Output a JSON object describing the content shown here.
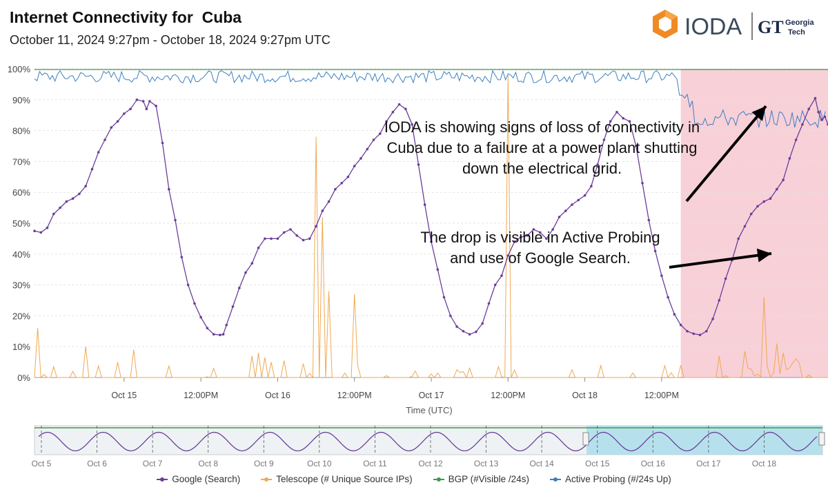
{
  "header": {
    "title": "Internet Connectivity for  Cuba",
    "subtitle": "October 11, 2024 9:27pm - October 18, 2024 9:27pm UTC",
    "logo_text": "IODA",
    "partner_logo_text": "Georgia Tech"
  },
  "annotations": {
    "main": "IODA is showing signs of loss of connectivity in Cuba due to a failure at a power plant shutting down the electrical grid.",
    "drop": "The drop is visible in Active Probing and use of Google Search."
  },
  "colors": {
    "google": "#6a3d9a",
    "telescope": "#f0a850",
    "bgp": "#3c9a4c",
    "active_probing": "#3b7fc0",
    "outage_band": "#f8d0d8",
    "navigator_selection": "#a8dcea"
  },
  "chart_data": {
    "type": "line",
    "title": "Internet Connectivity for  Cuba",
    "xlabel": "Time (UTC)",
    "ylabel": "",
    "ylim": [
      0,
      100
    ],
    "y_ticks": [
      "0%",
      "10%",
      "20%",
      "30%",
      "40%",
      "50%",
      "60%",
      "70%",
      "80%",
      "90%",
      "100%"
    ],
    "x_range_hours": [
      -14,
      110
    ],
    "x_ticks": [
      {
        "label": "Oct 15",
        "hour": 0
      },
      {
        "label": "12:00PM",
        "hour": 12
      },
      {
        "label": "Oct 16",
        "hour": 24
      },
      {
        "label": "12:00PM",
        "hour": 36
      },
      {
        "label": "Oct 17",
        "hour": 48
      },
      {
        "label": "12:00PM",
        "hour": 60
      },
      {
        "label": "Oct 18",
        "hour": 72
      },
      {
        "label": "12:00PM",
        "hour": 84
      }
    ],
    "grid": true,
    "legend_position": "bottom",
    "outage_band_hours": [
      87,
      110
    ],
    "series": [
      {
        "name": "Google (Search)",
        "key": "google",
        "points": [
          [
            -14,
            47.5
          ],
          [
            -13,
            47
          ],
          [
            -12,
            48.5
          ],
          [
            -11,
            53
          ],
          [
            -10,
            55
          ],
          [
            -9,
            57
          ],
          [
            -8,
            58
          ],
          [
            -7,
            59.5
          ],
          [
            -6,
            62
          ],
          [
            -5,
            67.5
          ],
          [
            -4,
            73
          ],
          [
            -3,
            77
          ],
          [
            -2,
            81
          ],
          [
            -1,
            83
          ],
          [
            0,
            85.5
          ],
          [
            1,
            87
          ],
          [
            2,
            90
          ],
          [
            3,
            89.5
          ],
          [
            3.5,
            87
          ],
          [
            4,
            89.5
          ],
          [
            5,
            88
          ],
          [
            6,
            76
          ],
          [
            7,
            61
          ],
          [
            8,
            51
          ],
          [
            9,
            39
          ],
          [
            10,
            30
          ],
          [
            11,
            24
          ],
          [
            12,
            19.5
          ],
          [
            13,
            16
          ],
          [
            14,
            14
          ],
          [
            15,
            13.8
          ],
          [
            15.5,
            14
          ],
          [
            16,
            17
          ],
          [
            17,
            23
          ],
          [
            18,
            29
          ],
          [
            19,
            34
          ],
          [
            20,
            37
          ],
          [
            21,
            42
          ],
          [
            22,
            45
          ],
          [
            23,
            45
          ],
          [
            24,
            45
          ],
          [
            25,
            47
          ],
          [
            26,
            48
          ],
          [
            27,
            46
          ],
          [
            28,
            44.5
          ],
          [
            29,
            45
          ],
          [
            30,
            49
          ],
          [
            31,
            54
          ],
          [
            32,
            57
          ],
          [
            33,
            61
          ],
          [
            34,
            63
          ],
          [
            35,
            65
          ],
          [
            36,
            68.5
          ],
          [
            37,
            71
          ],
          [
            38,
            74
          ],
          [
            39,
            77
          ],
          [
            40,
            79
          ],
          [
            41,
            83
          ],
          [
            42,
            86
          ],
          [
            43,
            88.5
          ],
          [
            44,
            87
          ],
          [
            45,
            82
          ],
          [
            46,
            69
          ],
          [
            47,
            56
          ],
          [
            48,
            44
          ],
          [
            49,
            35
          ],
          [
            50,
            26
          ],
          [
            51,
            20
          ],
          [
            52,
            16.5
          ],
          [
            53,
            15
          ],
          [
            54,
            14
          ],
          [
            55,
            14.8
          ],
          [
            56,
            17.5
          ],
          [
            57,
            24
          ],
          [
            58,
            30
          ],
          [
            59,
            33
          ],
          [
            60,
            39.5
          ],
          [
            61,
            44
          ],
          [
            62,
            45.5
          ],
          [
            63,
            46
          ],
          [
            64,
            48
          ],
          [
            65,
            47
          ],
          [
            66,
            45
          ],
          [
            67,
            48
          ],
          [
            68,
            52
          ],
          [
            69,
            54
          ],
          [
            70,
            56
          ],
          [
            71,
            57.5
          ],
          [
            72,
            59
          ],
          [
            73,
            62
          ],
          [
            74,
            69
          ],
          [
            75,
            77
          ],
          [
            76,
            83
          ],
          [
            77,
            86
          ],
          [
            78,
            84
          ],
          [
            79,
            83
          ],
          [
            80,
            75
          ],
          [
            81,
            63
          ],
          [
            82,
            51
          ],
          [
            83,
            41
          ],
          [
            84,
            33
          ],
          [
            85,
            26
          ],
          [
            86,
            20.5
          ],
          [
            87,
            17
          ],
          [
            88,
            15
          ],
          [
            89,
            14.2
          ],
          [
            90,
            13.8
          ],
          [
            91,
            15
          ],
          [
            92,
            19
          ],
          [
            93,
            25
          ],
          [
            94,
            32
          ],
          [
            95,
            38
          ],
          [
            96,
            45
          ],
          [
            97,
            49
          ],
          [
            98,
            53
          ],
          [
            99,
            55.5
          ],
          [
            100,
            57
          ],
          [
            101,
            58
          ],
          [
            102,
            61
          ],
          [
            103,
            64
          ],
          [
            104,
            71
          ],
          [
            105,
            77
          ],
          [
            106,
            82
          ],
          [
            107,
            87
          ],
          [
            108,
            90.5
          ],
          [
            108.5,
            86
          ],
          [
            109,
            83.5
          ],
          [
            109.5,
            84.5
          ],
          [
            110,
            82
          ]
        ]
      },
      {
        "name": "Telescope (# Unique Source IPs)",
        "key": "telescope"
      },
      {
        "name": "BGP (#Visible /24s)",
        "key": "bgp",
        "constant": 99.8
      },
      {
        "name": "Active Probing (#/24s Up)",
        "key": "active_probing",
        "baseline": 97.5,
        "drop_to": 84
      }
    ]
  },
  "navigator": {
    "x_labels": [
      "Oct 5",
      "Oct 6",
      "Oct 7",
      "Oct 8",
      "Oct 9",
      "Oct 10",
      "Oct 11",
      "Oct 12",
      "Oct 13",
      "Oct 14",
      "Oct 15",
      "Oct 16",
      "Oct 17",
      "Oct 18"
    ]
  }
}
